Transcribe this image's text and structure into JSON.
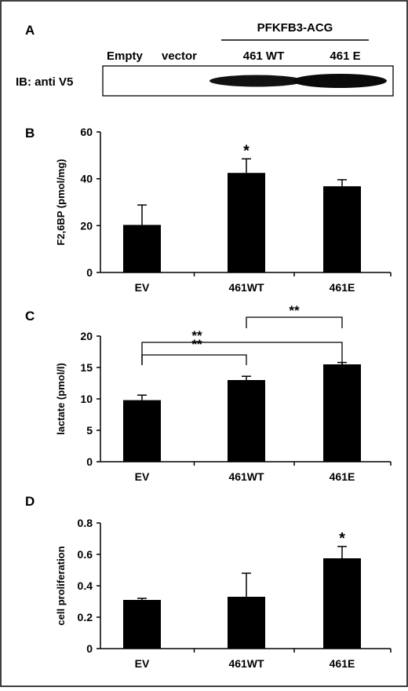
{
  "panel_a": {
    "letter": "A",
    "construct_label": "PFKFB3-ACG",
    "lane_labels": [
      "Empty",
      "vector",
      "461 WT",
      "461 E"
    ],
    "blot_label": "IB: anti V5"
  },
  "chart_data": [
    {
      "type": "bar",
      "panel": "B",
      "title": "",
      "xlabel": "",
      "ylabel": "F2,6BP (pmol/mg)",
      "ylim": [
        0,
        60
      ],
      "yticks": [
        0,
        20,
        40,
        60
      ],
      "categories": [
        "EV",
        "461WT",
        "461E"
      ],
      "values": [
        20.3,
        42.5,
        36.8
      ],
      "errors": [
        8.5,
        6.0,
        2.8
      ],
      "annotations": [
        {
          "category": "461WT",
          "text": "*"
        }
      ],
      "color": "#000000"
    },
    {
      "type": "bar",
      "panel": "C",
      "title": "",
      "xlabel": "",
      "ylabel": "lactate (pmol/l)",
      "ylim": [
        0,
        20
      ],
      "yticks": [
        0,
        5,
        10,
        15,
        20
      ],
      "categories": [
        "EV",
        "461WT",
        "461E"
      ],
      "values": [
        9.8,
        13.0,
        15.5
      ],
      "errors": [
        0.8,
        0.6,
        0.3
      ],
      "brackets": [
        {
          "from": "EV",
          "to": "461WT",
          "text": "**"
        },
        {
          "from": "EV",
          "to": "461E",
          "text": "**"
        },
        {
          "from": "461WT",
          "to": "461E",
          "text": "**"
        }
      ],
      "color": "#000000"
    },
    {
      "type": "bar",
      "panel": "D",
      "title": "",
      "xlabel": "",
      "ylabel": "cell proliferation",
      "ylim": [
        0,
        0.8
      ],
      "yticks": [
        0,
        0.2,
        0.4,
        0.6,
        0.8
      ],
      "categories": [
        "EV",
        "461WT",
        "461E"
      ],
      "values": [
        0.31,
        0.33,
        0.575
      ],
      "errors": [
        0.01,
        0.15,
        0.075
      ],
      "annotations": [
        {
          "category": "461E",
          "text": "*"
        }
      ],
      "color": "#000000"
    }
  ]
}
